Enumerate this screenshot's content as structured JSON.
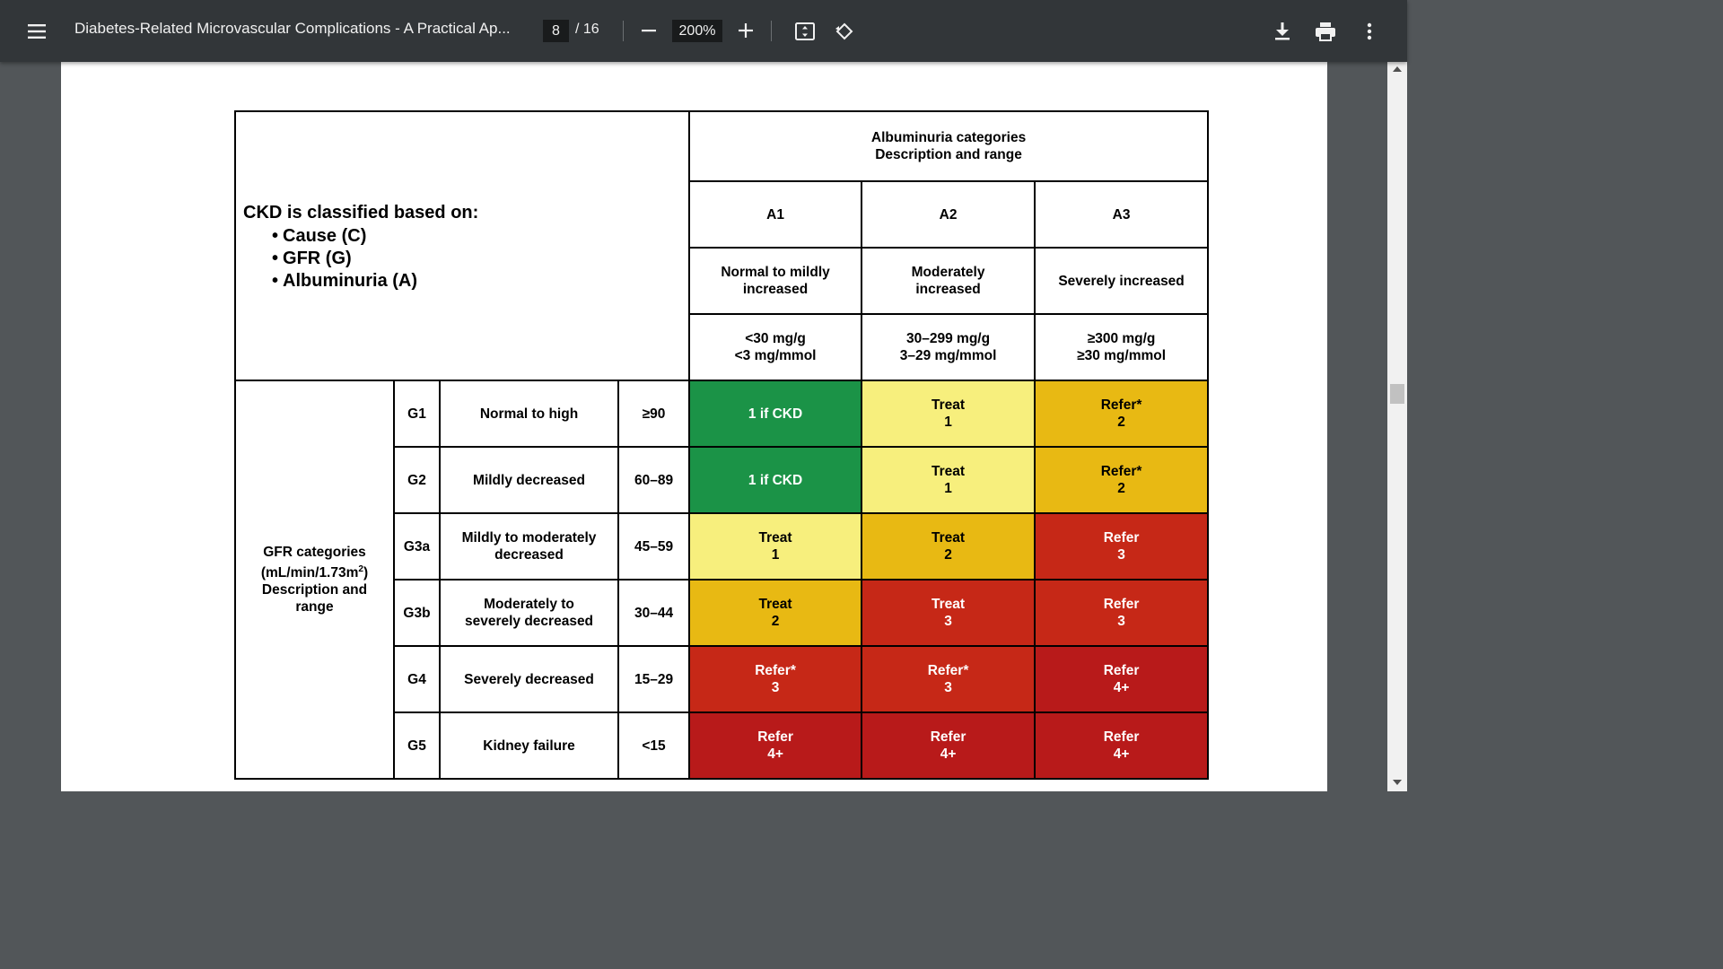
{
  "toolbar": {
    "menu_icon": "hamburger-menu-icon",
    "title": "Diabetes-Related Microvascular Complications - A Practical Ap...",
    "page_current": "8",
    "page_total": "/ 16",
    "zoom": "200%",
    "icons": {
      "zoom_out": "minus-icon",
      "zoom_in": "plus-icon",
      "fit": "fit-to-page-icon",
      "rotate": "rotate-counterclockwise-icon",
      "download": "download-icon",
      "print": "print-icon",
      "more": "more-vert-icon"
    }
  },
  "table": {
    "intro_title": "CKD is classified based on:",
    "intro_items": [
      "Cause (C)",
      "GFR (G)",
      "Albuminuria (A)"
    ],
    "albuminuria_header_line1": "Albuminuria categories",
    "albuminuria_header_line2": "Description and range",
    "gfr_header_line1": "GFR categories",
    "gfr_header_line2": "(mL/min/1.73m",
    "gfr_header_sup": "2",
    "gfr_header_line2_end": ")",
    "gfr_header_line3": "Description and",
    "gfr_header_line4": "range",
    "columns": [
      {
        "code": "A1",
        "desc_line1": "Normal to mildly",
        "desc_line2": "increased",
        "range_line1": "<30 mg/g",
        "range_line2": "<3 mg/mmol"
      },
      {
        "code": "A2",
        "desc_line1": "Moderately",
        "desc_line2": "increased",
        "range_line1": "30–299 mg/g",
        "range_line2": "3–29 mg/mmol"
      },
      {
        "code": "A3",
        "desc_line1": "Severely increased",
        "desc_line2": "",
        "range_line1": "≥300 mg/g",
        "range_line2": "≥30 mg/mmol"
      }
    ],
    "rows": [
      {
        "code": "G1",
        "desc_line1": "Normal to high",
        "desc_line2": "",
        "range": "≥90",
        "cells": [
          {
            "l1": "1 if CKD",
            "l2": "",
            "color": "green"
          },
          {
            "l1": "Treat",
            "l2": "1",
            "color": "yellow"
          },
          {
            "l1": "Refer*",
            "l2": "2",
            "color": "orange"
          }
        ]
      },
      {
        "code": "G2",
        "desc_line1": "Mildly decreased",
        "desc_line2": "",
        "range": "60–89",
        "cells": [
          {
            "l1": "1 if CKD",
            "l2": "",
            "color": "green"
          },
          {
            "l1": "Treat",
            "l2": "1",
            "color": "yellow"
          },
          {
            "l1": "Refer*",
            "l2": "2",
            "color": "orange"
          }
        ]
      },
      {
        "code": "G3a",
        "desc_line1": "Mildly to moderately",
        "desc_line2": "decreased",
        "range": "45–59",
        "cells": [
          {
            "l1": "Treat",
            "l2": "1",
            "color": "yellow"
          },
          {
            "l1": "Treat",
            "l2": "2",
            "color": "orange"
          },
          {
            "l1": "Refer",
            "l2": "3",
            "color": "red"
          }
        ]
      },
      {
        "code": "G3b",
        "desc_line1": "Moderately to",
        "desc_line2": "severely decreased",
        "range": "30–44",
        "cells": [
          {
            "l1": "Treat",
            "l2": "2",
            "color": "orange"
          },
          {
            "l1": "Treat",
            "l2": "3",
            "color": "red"
          },
          {
            "l1": "Refer",
            "l2": "3",
            "color": "red"
          }
        ]
      },
      {
        "code": "G4",
        "desc_line1": "Severely decreased",
        "desc_line2": "",
        "range": "15–29",
        "cells": [
          {
            "l1": "Refer*",
            "l2": "3",
            "color": "red"
          },
          {
            "l1": "Refer*",
            "l2": "3",
            "color": "red"
          },
          {
            "l1": "Refer",
            "l2": "4+",
            "color": "deepred"
          }
        ]
      },
      {
        "code": "G5",
        "desc_line1": "Kidney failure",
        "desc_line2": "",
        "range": "<15",
        "cells": [
          {
            "l1": "Refer",
            "l2": "4+",
            "color": "deepred"
          },
          {
            "l1": "Refer",
            "l2": "4+",
            "color": "deepred"
          },
          {
            "l1": "Refer",
            "l2": "4+",
            "color": "deepred"
          }
        ]
      }
    ]
  },
  "colors": {
    "toolbar_bg": "#323639",
    "viewer_bg": "#525659",
    "green": "#1b9347",
    "yellow": "#f7ef7d",
    "orange": "#e8b913",
    "red": "#c62817",
    "deepred": "#b81a1a"
  }
}
